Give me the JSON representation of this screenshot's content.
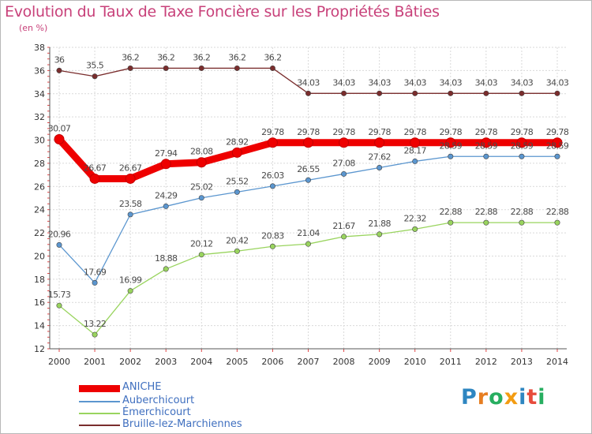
{
  "title": "Evolution du Taux de Taxe Foncière sur les Propriétés Bâties",
  "subtitle": "(en %)",
  "logo_text": "Proxiti",
  "chart_data": {
    "type": "line",
    "title": "Evolution du Taux de Taxe Foncière sur les Propriétés Bâties",
    "ylabel": "(en %)",
    "xlabel": "",
    "categories": [
      "2000",
      "2001",
      "2002",
      "2003",
      "2004",
      "2005",
      "2006",
      "2007",
      "2008",
      "2009",
      "2010",
      "2011",
      "2012",
      "2013",
      "2014"
    ],
    "ylim": [
      12,
      38
    ],
    "yticks": [
      12,
      14,
      16,
      18,
      20,
      22,
      24,
      26,
      28,
      30,
      32,
      34,
      36,
      38
    ],
    "grid": true,
    "legend_position": "bottom-left",
    "series": [
      {
        "name": "ANICHE",
        "color": "#ee0000",
        "values": [
          30.07,
          26.67,
          26.67,
          27.94,
          28.08,
          28.92,
          29.78,
          29.78,
          29.78,
          29.78,
          29.78,
          29.78,
          29.78,
          29.78,
          29.78
        ],
        "labels": [
          "30.07",
          "26.67",
          "26.67",
          "27.94",
          "28.08",
          "28.92",
          "29.78",
          "29.78",
          "29.78",
          "29.78",
          "29.78",
          "29.78",
          "29.78",
          "29.78",
          "29.78"
        ]
      },
      {
        "name": "Auberchicourt",
        "color": "#5b96cf",
        "values": [
          20.96,
          17.69,
          23.58,
          24.29,
          25.02,
          25.52,
          26.03,
          26.55,
          27.08,
          27.62,
          28.17,
          28.59,
          28.59,
          28.59,
          28.59
        ],
        "labels": [
          "20.96",
          "17.69",
          "23.58",
          "24.29",
          "25.02",
          "25.52",
          "26.03",
          "26.55",
          "27.08",
          "27.62",
          "28.17",
          "28.59",
          "28.59",
          "28.59",
          "28.59"
        ]
      },
      {
        "name": "Émerchicourt",
        "color": "#99d45e",
        "values": [
          15.73,
          13.22,
          16.99,
          18.88,
          20.12,
          20.42,
          20.83,
          21.04,
          21.67,
          21.88,
          22.32,
          22.88,
          22.88,
          22.88,
          22.88
        ],
        "labels": [
          "15.73",
          "13.22",
          "16.99",
          "18.88",
          "20.12",
          "20.42",
          "20.83",
          "21.04",
          "21.67",
          "21.88",
          "22.32",
          "22.88",
          "22.88",
          "22.88",
          "22.88"
        ]
      },
      {
        "name": "Bruille-lez-Marchiennes",
        "color": "#7a2d2d",
        "values": [
          36,
          35.5,
          36.2,
          36.2,
          36.2,
          36.2,
          36.2,
          34.03,
          34.03,
          34.03,
          34.03,
          34.03,
          34.03,
          34.03,
          34.03
        ],
        "labels": [
          "36",
          "35.5",
          "36.2",
          "36.2",
          "36.2",
          "36.2",
          "36.2",
          "34.03",
          "34.03",
          "34.03",
          "34.03",
          "34.03",
          "34.03",
          "34.03",
          "34.03"
        ]
      }
    ]
  }
}
